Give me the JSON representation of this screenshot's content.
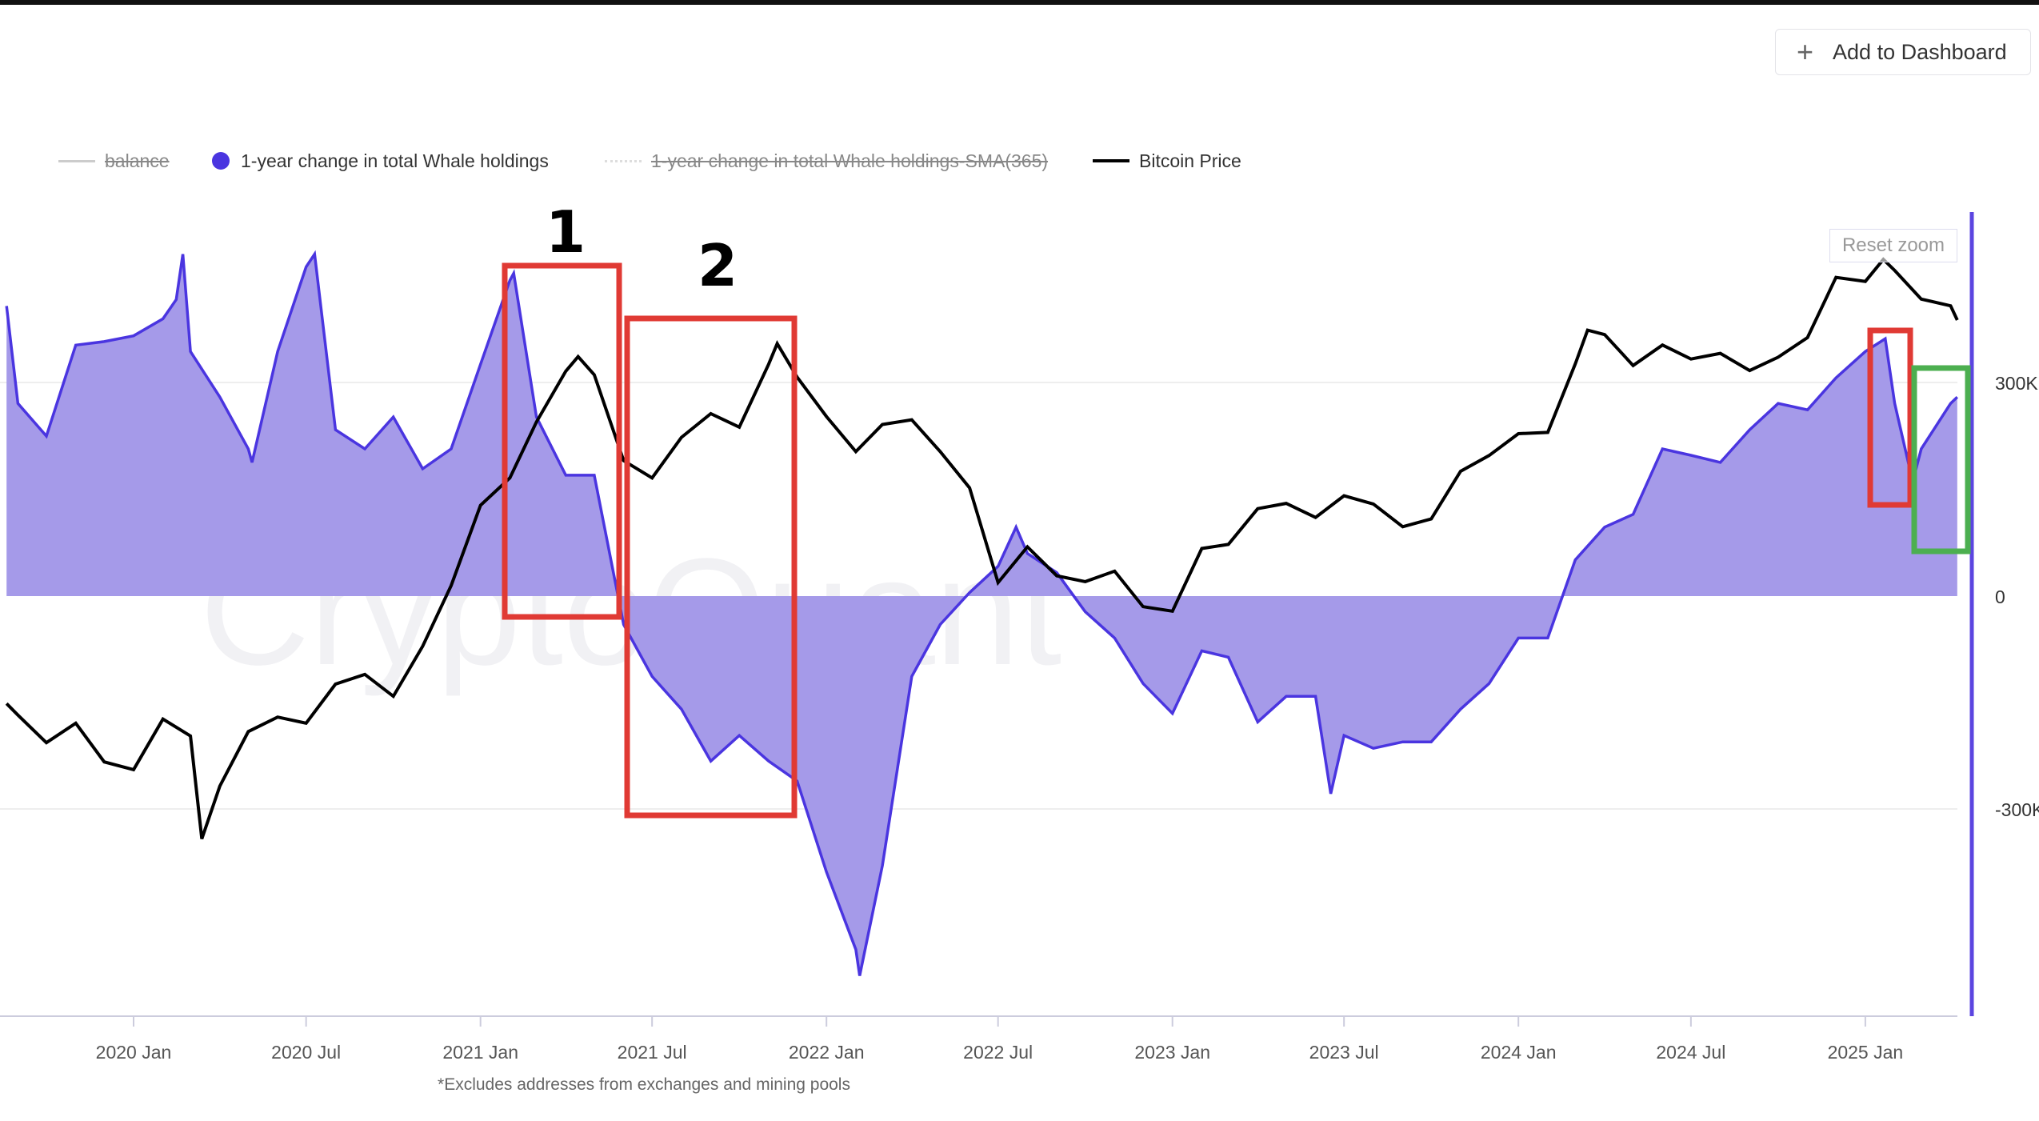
{
  "header": {
    "add_to_dashboard_label": "Add to Dashboard",
    "plus_icon": "plus-icon"
  },
  "reset_zoom_label": "Reset zoom",
  "watermark": "CryptoQuant",
  "footnote": "*Excludes addresses from exchanges and mining pools",
  "annotations": {
    "box1_label": "1",
    "box2_label": "2"
  },
  "colors": {
    "whale_line": "#4a35e0",
    "whale_fill": "#a59ae9",
    "price": "#000000",
    "box_red": "#e03a34",
    "box_green": "#4caf50",
    "axis": "#5b45e0"
  },
  "chart_data": {
    "type": "area",
    "legend_position": "top-left",
    "legend": [
      {
        "name": "balance",
        "visible": false
      },
      {
        "name": "1-year change in total Whale holdings",
        "visible": true
      },
      {
        "name": "1-year change in total Whale holdings-SMA(365)",
        "visible": false
      },
      {
        "name": "Bitcoin Price",
        "visible": true
      }
    ],
    "x_ticks": [
      "2020 Jan",
      "2020 Jul",
      "2021 Jan",
      "2021 Jul",
      "2022 Jan",
      "2022 Jul",
      "2023 Jan",
      "2023 Jul",
      "2024 Jan",
      "2024 Jul",
      "2025 Jan"
    ],
    "y_ticks": [
      "300K",
      "0",
      "-300K"
    ],
    "grid": true,
    "series": [
      {
        "name": "1-year change in total Whale holdings",
        "type": "area",
        "unit": "K",
        "points": [
          [
            "2019-08-20",
            408
          ],
          [
            "2019-09-01",
            271
          ],
          [
            "2019-10-01",
            225
          ],
          [
            "2019-11-01",
            353
          ],
          [
            "2019-12-01",
            358
          ],
          [
            "2020-01-01",
            366
          ],
          [
            "2020-02-01",
            390
          ],
          [
            "2020-02-15",
            417
          ],
          [
            "2020-02-22",
            481
          ],
          [
            "2020-03-01",
            344
          ],
          [
            "2020-04-01",
            280
          ],
          [
            "2020-05-01",
            207
          ],
          [
            "2020-05-05",
            188
          ],
          [
            "2020-06-01",
            344
          ],
          [
            "2020-07-01",
            463
          ],
          [
            "2020-07-10",
            481
          ],
          [
            "2020-08-01",
            234
          ],
          [
            "2020-09-01",
            207
          ],
          [
            "2020-10-01",
            252
          ],
          [
            "2020-11-01",
            179
          ],
          [
            "2020-12-01",
            207
          ],
          [
            "2021-01-01",
            326
          ],
          [
            "2021-02-01",
            444
          ],
          [
            "2021-02-05",
            454
          ],
          [
            "2021-03-01",
            252
          ],
          [
            "2021-04-01",
            170
          ],
          [
            "2021-05-01",
            170
          ],
          [
            "2021-06-01",
            -40
          ],
          [
            "2021-07-01",
            -113
          ],
          [
            "2021-08-01",
            -159
          ],
          [
            "2021-09-01",
            -232
          ],
          [
            "2021-10-01",
            -196
          ],
          [
            "2021-11-01",
            -232
          ],
          [
            "2021-12-01",
            -260
          ],
          [
            "2022-01-01",
            -388
          ],
          [
            "2022-02-01",
            -497
          ],
          [
            "2022-02-05",
            -534
          ],
          [
            "2022-03-01",
            -379
          ],
          [
            "2022-04-01",
            -113
          ],
          [
            "2022-05-01",
            -40
          ],
          [
            "2022-06-01",
            5
          ],
          [
            "2022-07-01",
            42
          ],
          [
            "2022-07-20",
            97
          ],
          [
            "2022-08-01",
            60
          ],
          [
            "2022-09-01",
            33
          ],
          [
            "2022-10-01",
            -22
          ],
          [
            "2022-11-01",
            -59
          ],
          [
            "2022-12-01",
            -123
          ],
          [
            "2023-01-01",
            -165
          ],
          [
            "2023-02-01",
            -77
          ],
          [
            "2023-03-01",
            -86
          ],
          [
            "2023-04-01",
            -177
          ],
          [
            "2023-05-01",
            -141
          ],
          [
            "2023-06-01",
            -141
          ],
          [
            "2023-06-17",
            -278
          ],
          [
            "2023-07-01",
            -196
          ],
          [
            "2023-08-01",
            -214
          ],
          [
            "2023-09-01",
            -205
          ],
          [
            "2023-10-01",
            -205
          ],
          [
            "2023-11-01",
            -159
          ],
          [
            "2023-12-01",
            -123
          ],
          [
            "2024-01-01",
            -59
          ],
          [
            "2024-02-01",
            -59
          ],
          [
            "2024-03-01",
            51
          ],
          [
            "2024-04-01",
            97
          ],
          [
            "2024-05-01",
            115
          ],
          [
            "2024-06-01",
            207
          ],
          [
            "2024-07-01",
            198
          ],
          [
            "2024-08-01",
            188
          ],
          [
            "2024-09-01",
            234
          ],
          [
            "2024-10-01",
            271
          ],
          [
            "2024-11-01",
            262
          ],
          [
            "2024-12-01",
            307
          ],
          [
            "2025-01-01",
            344
          ],
          [
            "2025-01-22",
            362
          ],
          [
            "2025-02-01",
            271
          ],
          [
            "2025-02-20",
            161
          ],
          [
            "2025-03-01",
            207
          ],
          [
            "2025-04-01",
            271
          ],
          [
            "2025-04-08",
            280
          ]
        ]
      },
      {
        "name": "Bitcoin Price",
        "type": "line",
        "unit": "USD",
        "yscale": "log",
        "points": [
          [
            "2019-08-20",
            10200
          ],
          [
            "2019-09-01",
            9600
          ],
          [
            "2019-10-01",
            8300
          ],
          [
            "2019-11-01",
            9200
          ],
          [
            "2019-12-01",
            7500
          ],
          [
            "2020-01-01",
            7200
          ],
          [
            "2020-02-01",
            9400
          ],
          [
            "2020-03-01",
            8600
          ],
          [
            "2020-03-13",
            5000
          ],
          [
            "2020-04-01",
            6600
          ],
          [
            "2020-05-01",
            8800
          ],
          [
            "2020-06-01",
            9500
          ],
          [
            "2020-07-01",
            9200
          ],
          [
            "2020-08-01",
            11300
          ],
          [
            "2020-09-01",
            11900
          ],
          [
            "2020-10-01",
            10600
          ],
          [
            "2020-11-01",
            13800
          ],
          [
            "2020-12-01",
            19000
          ],
          [
            "2021-01-01",
            29000
          ],
          [
            "2021-02-01",
            33500
          ],
          [
            "2021-03-01",
            45000
          ],
          [
            "2021-04-01",
            58800
          ],
          [
            "2021-04-14",
            63500
          ],
          [
            "2021-05-01",
            57700
          ],
          [
            "2021-06-01",
            36700
          ],
          [
            "2021-07-01",
            33500
          ],
          [
            "2021-08-01",
            41500
          ],
          [
            "2021-09-01",
            47000
          ],
          [
            "2021-10-01",
            43800
          ],
          [
            "2021-11-01",
            61000
          ],
          [
            "2021-11-10",
            68000
          ],
          [
            "2021-12-01",
            57000
          ],
          [
            "2022-01-01",
            46300
          ],
          [
            "2022-02-01",
            38500
          ],
          [
            "2022-03-01",
            44400
          ],
          [
            "2022-04-01",
            45500
          ],
          [
            "2022-05-01",
            38500
          ],
          [
            "2022-06-01",
            31800
          ],
          [
            "2022-07-01",
            19300
          ],
          [
            "2022-08-01",
            23300
          ],
          [
            "2022-09-01",
            20000
          ],
          [
            "2022-10-01",
            19400
          ],
          [
            "2022-11-01",
            20500
          ],
          [
            "2022-12-01",
            17000
          ],
          [
            "2023-01-01",
            16600
          ],
          [
            "2023-02-01",
            23100
          ],
          [
            "2023-03-01",
            23600
          ],
          [
            "2023-04-01",
            28500
          ],
          [
            "2023-05-01",
            29300
          ],
          [
            "2023-06-01",
            27200
          ],
          [
            "2023-07-01",
            30500
          ],
          [
            "2023-08-01",
            29200
          ],
          [
            "2023-09-01",
            25900
          ],
          [
            "2023-10-01",
            27000
          ],
          [
            "2023-11-01",
            34700
          ],
          [
            "2023-12-01",
            37700
          ],
          [
            "2024-01-01",
            42300
          ],
          [
            "2024-02-01",
            42600
          ],
          [
            "2024-03-01",
            61100
          ],
          [
            "2024-03-14",
            73000
          ],
          [
            "2024-04-01",
            71300
          ],
          [
            "2024-05-01",
            60600
          ],
          [
            "2024-06-01",
            67500
          ],
          [
            "2024-07-01",
            62700
          ],
          [
            "2024-08-01",
            64600
          ],
          [
            "2024-09-01",
            59000
          ],
          [
            "2024-10-01",
            63300
          ],
          [
            "2024-11-01",
            70200
          ],
          [
            "2024-12-01",
            96400
          ],
          [
            "2025-01-01",
            94400
          ],
          [
            "2025-01-20",
            106000
          ],
          [
            "2025-02-01",
            100000
          ],
          [
            "2025-03-01",
            86000
          ],
          [
            "2025-04-01",
            83000
          ],
          [
            "2025-04-08",
            77000
          ]
        ]
      }
    ]
  }
}
